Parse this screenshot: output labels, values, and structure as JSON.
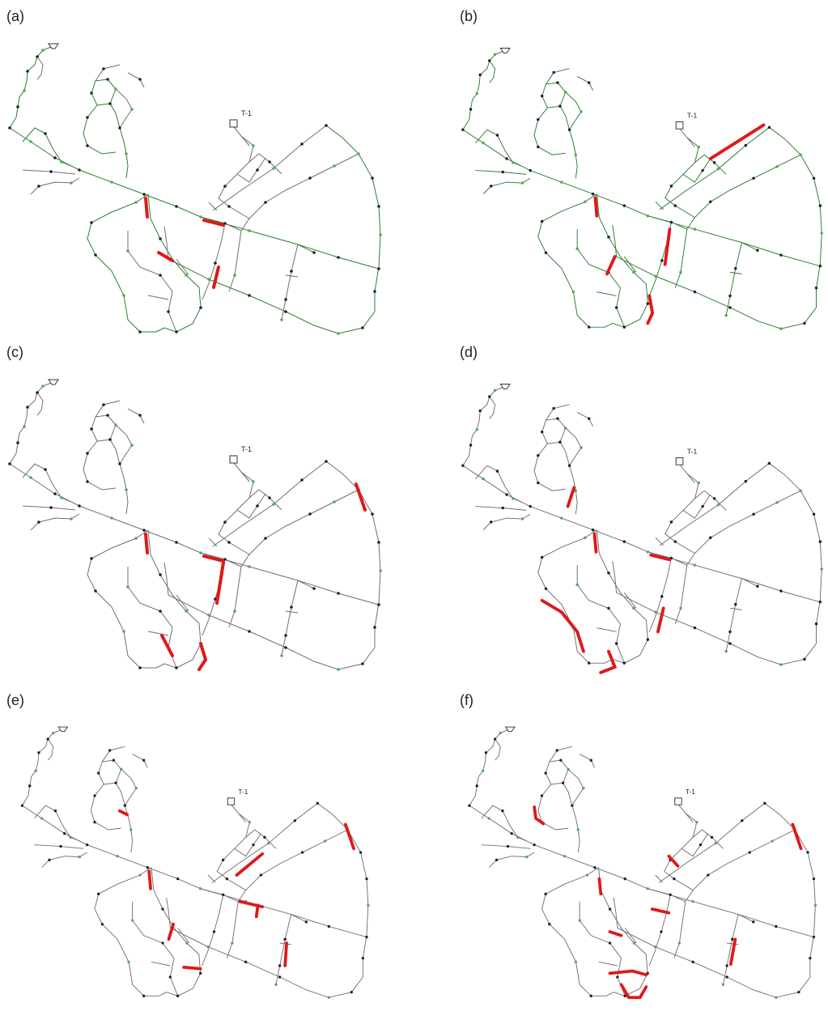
{
  "panels": [
    {
      "label": "(a)"
    },
    {
      "label": "(b)"
    },
    {
      "label": "(c)"
    },
    {
      "label": "(d)"
    },
    {
      "label": "(e)"
    },
    {
      "label": "(f)"
    }
  ],
  "tank_label": "T-1",
  "colors": {
    "pipe": "#6f6f6f",
    "pipe_green": "#2e7d32",
    "highlight": "#e01818",
    "node": "#222222"
  }
}
